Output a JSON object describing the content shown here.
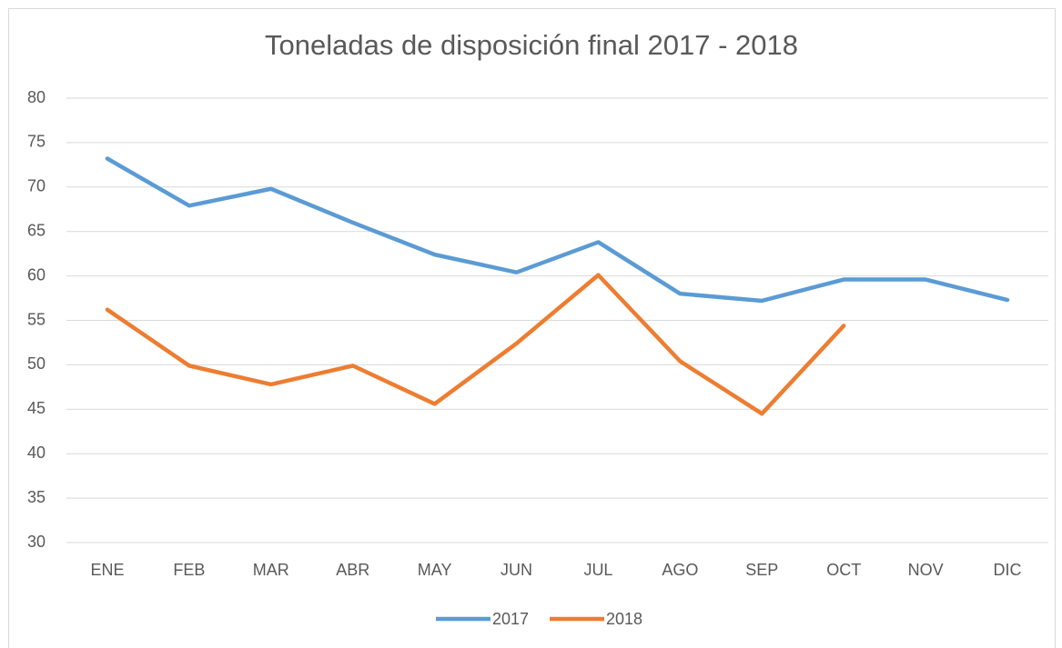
{
  "chart_data": {
    "type": "line",
    "title": "Toneladas de disposición final 2017 - 2018",
    "categories": [
      "ENE",
      "FEB",
      "MAR",
      "ABR",
      "MAY",
      "JUN",
      "JUL",
      "AGO",
      "SEP",
      "OCT",
      "NOV",
      "DIC"
    ],
    "series": [
      {
        "name": "2017",
        "color": "#5b9bd5",
        "values": [
          73.2,
          67.9,
          69.8,
          66,
          62.4,
          60.4,
          63.8,
          58,
          57.2,
          59.6,
          59.6,
          57.3
        ]
      },
      {
        "name": "2018",
        "color": "#ed7d31",
        "values": [
          56.2,
          49.9,
          47.8,
          49.9,
          45.6,
          52.4,
          60.1,
          50.4,
          44.5,
          54.4,
          null,
          null
        ]
      }
    ],
    "ylim": [
      30,
      80
    ],
    "yticks": [
      30,
      35,
      40,
      45,
      50,
      55,
      60,
      65,
      70,
      75,
      80
    ],
    "grid": true,
    "legend": "bottom"
  }
}
